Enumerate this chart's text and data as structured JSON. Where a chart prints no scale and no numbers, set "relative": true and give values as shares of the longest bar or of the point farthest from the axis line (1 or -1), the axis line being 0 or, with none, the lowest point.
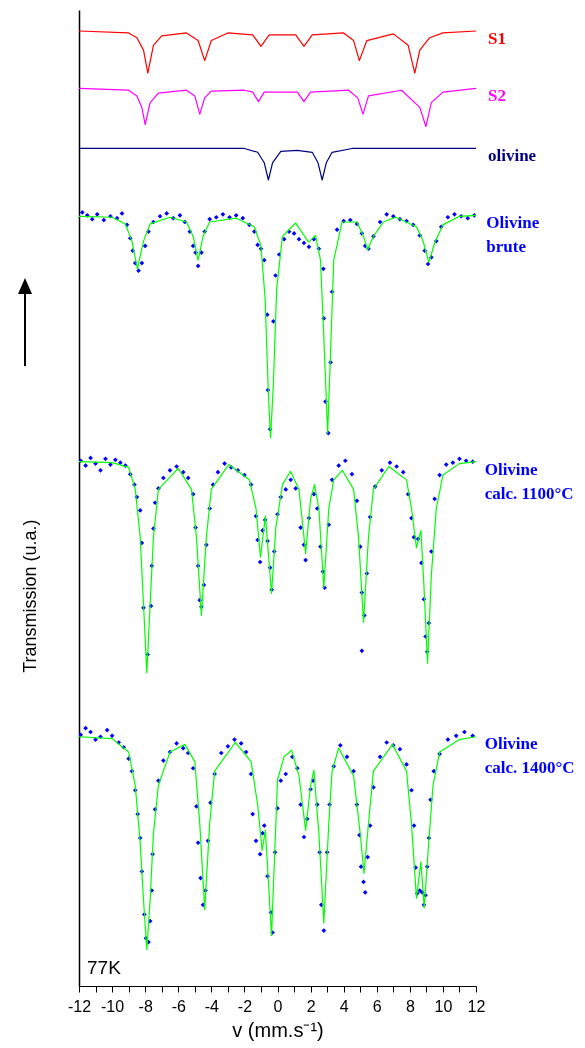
{
  "chart_data": {
    "type": "line",
    "relative": true,
    "xlabel": "v (mm.s⁻¹)",
    "ylabel": "Transmission (u.a.)",
    "xlim": [
      -12,
      12
    ],
    "xticks": [
      -12,
      {
        "value": -11,
        "label": null
      },
      -10,
      {
        "value": -9,
        "label": null
      },
      -8,
      {
        "value": -7,
        "label": null
      },
      -6,
      {
        "value": -5,
        "label": null
      },
      -4,
      {
        "value": -3,
        "label": null
      },
      -2,
      {
        "value": -1,
        "label": null
      },
      0,
      {
        "value": 1,
        "label": null
      },
      2,
      {
        "value": 3,
        "label": null
      },
      4,
      {
        "value": 5,
        "label": null
      },
      6,
      {
        "value": 7,
        "label": null
      },
      8,
      {
        "value": 9,
        "label": null
      },
      10,
      {
        "value": 11,
        "label": null
      },
      12
    ],
    "grid": false,
    "annotations": [
      "77K"
    ],
    "series": [
      {
        "name": "S1",
        "type": "line",
        "color": "#ff0000",
        "x": [
          -12,
          -9,
          -8.5,
          -8.1,
          -7.84,
          -7.5,
          -7,
          -5.5,
          -4.8,
          -4.4,
          -4,
          -3,
          -1.5,
          -1,
          -0.5,
          1.1,
          1.6,
          2.1,
          4,
          4.6,
          4.95,
          5.4,
          7,
          7.9,
          8.3,
          8.6,
          9.2,
          10,
          12
        ],
        "values": [
          1,
          0.998,
          0.993,
          0.98,
          0.956,
          0.985,
          0.995,
          0.998,
          0.99,
          0.969,
          0.99,
          0.998,
          0.996,
          0.984,
          0.996,
          0.996,
          0.984,
          0.996,
          0.998,
          0.99,
          0.969,
          0.99,
          0.997,
          0.985,
          0.956,
          0.98,
          0.993,
          0.998,
          1
        ]
      },
      {
        "name": "S2",
        "type": "line",
        "color": "#ff00ff",
        "x": [
          -12,
          -9,
          -8.5,
          -8.2,
          -8,
          -7.7,
          -7.2,
          -5.5,
          -5,
          -4.7,
          -4.4,
          -4,
          -2,
          -1.5,
          -1.15,
          -0.8,
          1.2,
          1.6,
          2,
          4.3,
          4.85,
          5.17,
          5.5,
          7.5,
          8.6,
          8.97,
          9.3,
          10,
          12
        ],
        "values": [
          0.94,
          0.938,
          0.932,
          0.92,
          0.902,
          0.925,
          0.935,
          0.938,
          0.932,
          0.913,
          0.93,
          0.937,
          0.938,
          0.936,
          0.926,
          0.936,
          0.936,
          0.926,
          0.936,
          0.938,
          0.93,
          0.913,
          0.932,
          0.938,
          0.92,
          0.9,
          0.925,
          0.936,
          0.94
        ]
      },
      {
        "name": "olivine",
        "type": "line",
        "color": "#000080",
        "x": [
          -12,
          -2,
          -1.2,
          -0.8,
          -0.55,
          -0.3,
          0.2,
          1.2,
          2.1,
          2.45,
          2.7,
          2.95,
          3.3,
          4.5,
          12
        ],
        "values": [
          0.877,
          0.877,
          0.873,
          0.862,
          0.844,
          0.862,
          0.874,
          0.875,
          0.873,
          0.862,
          0.844,
          0.862,
          0.873,
          0.877,
          0.877
        ]
      },
      {
        "name": "Olivine brute",
        "type": "scatter",
        "marker": "diamond",
        "color": "#0000ff",
        "x": [
          -11.8,
          -11.5,
          -11.2,
          -10.9,
          -10.5,
          -10.1,
          -9.7,
          -9.4,
          -9.1,
          -8.9,
          -8.75,
          -8.6,
          -8.4,
          -8.2,
          -8,
          -7.8,
          -7.5,
          -7.1,
          -6.7,
          -6.3,
          -5.9,
          -5.6,
          -5.3,
          -5.1,
          -4.95,
          -4.8,
          -4.6,
          -4.4,
          -4.1,
          -3.7,
          -3.3,
          -2.9,
          -2.5,
          -2.1,
          -1.7,
          -1.4,
          -1.2,
          -1,
          -0.8,
          -0.62,
          -0.58,
          -0.45,
          -0.25,
          -0.12,
          0.1,
          0.4,
          0.7,
          1,
          1.3,
          1.6,
          1.9,
          2.2,
          2.5,
          2.77,
          2.8,
          2.9,
          3.07,
          3.21,
          3.3,
          3.6,
          4,
          4.4,
          4.8,
          5.1,
          5.3,
          5.5,
          5.8,
          6.2,
          6.6,
          7,
          7.4,
          7.8,
          8.2,
          8.6,
          8.9,
          9.1,
          9.3,
          9.6,
          9.9,
          10.3,
          10.7,
          11.1,
          11.5,
          11.9
        ],
        "values": [
          0.81,
          0.807,
          0.803,
          0.808,
          0.802,
          0.806,
          0.804,
          0.809,
          0.797,
          0.783,
          0.77,
          0.757,
          0.749,
          0.757,
          0.775,
          0.79,
          0.8,
          0.806,
          0.809,
          0.804,
          0.807,
          0.8,
          0.79,
          0.775,
          0.768,
          0.754,
          0.768,
          0.79,
          0.803,
          0.805,
          0.808,
          0.805,
          0.807,
          0.804,
          0.797,
          0.79,
          0.776,
          0.772,
          0.76,
          0.703,
          0.624,
          0.583,
          0.696,
          0.744,
          0.766,
          0.782,
          0.79,
          0.788,
          0.782,
          0.778,
          0.774,
          0.782,
          0.772,
          0.751,
          0.699,
          0.612,
          0.579,
          0.653,
          0.727,
          0.792,
          0.801,
          0.802,
          0.798,
          0.788,
          0.775,
          0.772,
          0.785,
          0.8,
          0.808,
          0.806,
          0.803,
          0.801,
          0.797,
          0.786,
          0.77,
          0.756,
          0.763,
          0.78,
          0.795,
          0.805,
          0.808,
          0.806,
          0.804,
          0.807
        ]
      },
      {
        "color": "#00ff00",
        "x": [
          -12,
          -10,
          -9.2,
          -8.8,
          -8.47,
          -8.1,
          -7.7,
          -6.5,
          -5.5,
          -5.1,
          -4.8,
          -4.5,
          -4.1,
          -2.5,
          -1.4,
          -1,
          -0.75,
          -0.55,
          -0.42,
          -0.25,
          -0.05,
          0.3,
          1.09,
          1.88,
          2.3,
          2.6,
          2.8,
          3.03,
          3.2,
          3.4,
          3.9,
          4.8,
          5.2,
          5.45,
          5.8,
          6.4,
          7.15,
          8.4,
          8.8,
          9.15,
          9.5,
          10,
          11,
          12
        ],
        "values": [
          0.806,
          0.805,
          0.798,
          0.78,
          0.751,
          0.78,
          0.798,
          0.805,
          0.8,
          0.785,
          0.76,
          0.785,
          0.8,
          0.804,
          0.795,
          0.775,
          0.72,
          0.62,
          0.574,
          0.63,
          0.73,
          0.785,
          0.799,
          0.779,
          0.786,
          0.76,
          0.68,
          0.579,
          0.66,
          0.76,
          0.8,
          0.8,
          0.785,
          0.771,
          0.785,
          0.8,
          0.805,
          0.795,
          0.78,
          0.758,
          0.778,
          0.797,
          0.806,
          0.807
        ]
      },
      {
        "name": "Olivine calc. 1100°C",
        "type": "scatter",
        "marker": "diamond",
        "color": "#0000ff",
        "x": [
          -11.9,
          -11.6,
          -11.3,
          -11,
          -10.7,
          -10.4,
          -10.1,
          -9.8,
          -9.5,
          -9.2,
          -8.9,
          -8.65,
          -8.5,
          -8.3,
          -8.2,
          -8.1,
          -7.85,
          -7.65,
          -7.6,
          -7.5,
          -7.4,
          -7.2,
          -6.9,
          -6.5,
          -6.1,
          -5.7,
          -5.4,
          -5.1,
          -4.95,
          -4.8,
          -4.7,
          -4.6,
          -4.45,
          -4.3,
          -4.1,
          -3.9,
          -3.6,
          -3.2,
          -2.8,
          -2.4,
          -2,
          -1.6,
          -1.3,
          -1.2,
          -1.05,
          -0.9,
          -0.75,
          -0.6,
          -0.45,
          -0.35,
          -0.2,
          0,
          0.2,
          0.5,
          0.8,
          1.1,
          1.4,
          1.6,
          1.7,
          1.9,
          2.2,
          2.4,
          2.6,
          2.75,
          2.85,
          3.1,
          3.3,
          3.7,
          4.1,
          4.5,
          4.8,
          5,
          5.1,
          5.25,
          5.1,
          5.4,
          5.6,
          5.9,
          6.3,
          6.8,
          7.2,
          7.6,
          7.9,
          8.1,
          8.25,
          8.5,
          8.7,
          8.85,
          8.95,
          9.05,
          9.15,
          9.3,
          9.5,
          9.8,
          10.2,
          10.6,
          11,
          11.4,
          11.8
        ],
        "values": [
          0.55,
          0.545,
          0.553,
          0.547,
          0.54,
          0.552,
          0.546,
          0.551,
          0.548,
          0.545,
          0.536,
          0.525,
          0.512,
          0.498,
          0.464,
          0.396,
          0.347,
          0.398,
          0.44,
          0.479,
          0.506,
          0.521,
          0.532,
          0.54,
          0.544,
          0.538,
          0.532,
          0.515,
          0.48,
          0.44,
          0.404,
          0.397,
          0.42,
          0.462,
          0.5,
          0.525,
          0.538,
          0.547,
          0.543,
          0.54,
          0.535,
          0.525,
          0.492,
          0.467,
          0.444,
          0.477,
          0.488,
          0.466,
          0.438,
          0.415,
          0.455,
          0.494,
          0.512,
          0.52,
          0.53,
          0.521,
          0.48,
          0.462,
          0.446,
          0.49,
          0.515,
          0.5,
          0.46,
          0.434,
          0.417,
          0.483,
          0.53,
          0.545,
          0.55,
          0.536,
          0.508,
          0.46,
          0.412,
          0.388,
          0.351,
          0.432,
          0.491,
          0.523,
          0.54,
          0.548,
          0.544,
          0.538,
          0.515,
          0.49,
          0.47,
          0.468,
          0.443,
          0.405,
          0.366,
          0.35,
          0.38,
          0.455,
          0.51,
          0.535,
          0.546,
          0.548,
          0.552,
          0.55,
          0.549
        ]
      },
      {
        "color": "#00ff00",
        "x": [
          -12,
          -10,
          -9,
          -8.6,
          -8.3,
          -8.1,
          -7.9,
          -7.7,
          -7.5,
          -7.2,
          -6,
          -5.2,
          -4.9,
          -4.6,
          -4.3,
          -4,
          -2.95,
          -1.7,
          -1.3,
          -1.03,
          -0.73,
          -0.36,
          -0.1,
          0.3,
          0.79,
          1.3,
          1.7,
          2,
          2.24,
          2.5,
          2.8,
          3.1,
          3.4,
          3.92,
          4.6,
          4.9,
          5.2,
          5.5,
          5.8,
          6.73,
          7.8,
          8.1,
          8.4,
          8.67,
          8.85,
          9.07,
          9.3,
          9.6,
          10,
          11,
          12
        ],
        "values": [
          0.549,
          0.548,
          0.543,
          0.52,
          0.47,
          0.4,
          0.328,
          0.4,
          0.47,
          0.52,
          0.542,
          0.52,
          0.47,
          0.388,
          0.47,
          0.52,
          0.546,
          0.53,
          0.5,
          0.449,
          0.492,
          0.411,
          0.48,
          0.525,
          0.539,
          0.52,
          0.453,
          0.51,
          0.525,
          0.5,
          0.417,
          0.5,
          0.53,
          0.54,
          0.52,
          0.47,
          0.381,
          0.47,
          0.52,
          0.544,
          0.53,
          0.5,
          0.459,
          0.477,
          0.42,
          0.338,
          0.43,
          0.5,
          0.535,
          0.547,
          0.549
        ]
      },
      {
        "name": "Olivine calc. 1400°C",
        "type": "scatter",
        "marker": "diamond",
        "color": "#0000ff",
        "x": [
          -11.9,
          -11.6,
          -11.3,
          -11,
          -10.7,
          -10.3,
          -10,
          -9.6,
          -9.3,
          -9,
          -8.8,
          -8.6,
          -8.45,
          -8.3,
          -8.2,
          -8.05,
          -7.95,
          -7.8,
          -7.7,
          -7.6,
          -7.55,
          -7.4,
          -7.2,
          -6.9,
          -6.5,
          -6.1,
          -5.7,
          -5.4,
          -5.1,
          -4.9,
          -4.8,
          -4.65,
          -4.5,
          -4.35,
          -4.2,
          -4.05,
          -3.8,
          -3.4,
          -3,
          -2.6,
          -2.2,
          -1.9,
          -1.6,
          -1.5,
          -1.3,
          -1.05,
          -0.9,
          -0.8,
          -0.6,
          -0.4,
          -0.3,
          -0.15,
          0,
          0.2,
          0.5,
          0.9,
          1.2,
          1.4,
          1.6,
          1.8,
          2,
          2.15,
          2.4,
          2.55,
          2.65,
          2.8,
          3,
          3.15,
          3.4,
          3.8,
          4.2,
          4.6,
          4.8,
          4.95,
          5.05,
          5.2,
          5.3,
          5.45,
          5.6,
          5.8,
          6.2,
          6.6,
          7,
          7.4,
          7.8,
          8.1,
          8.25,
          8.35,
          8.45,
          8.6,
          8.75,
          8.85,
          8.95,
          9.05,
          9.15,
          9.25,
          9.45,
          9.8,
          10.3,
          10.8,
          11.3,
          11.8
        ],
        "values": [
          0.263,
          0.27,
          0.266,
          0.258,
          0.261,
          0.268,
          0.262,
          0.255,
          0.25,
          0.238,
          0.225,
          0.205,
          0.18,
          0.155,
          0.12,
          0.075,
          0.05,
          0.046,
          0.068,
          0.1,
          0.138,
          0.185,
          0.215,
          0.236,
          0.245,
          0.254,
          0.249,
          0.244,
          0.228,
          0.188,
          0.15,
          0.113,
          0.085,
          0.1,
          0.152,
          0.192,
          0.222,
          0.244,
          0.251,
          0.258,
          0.254,
          0.245,
          0.222,
          0.18,
          0.152,
          0.138,
          0.16,
          0.168,
          0.115,
          0.077,
          0.056,
          0.14,
          0.186,
          0.215,
          0.222,
          0.24,
          0.228,
          0.19,
          0.156,
          0.175,
          0.206,
          0.215,
          0.19,
          0.14,
          0.085,
          0.058,
          0.14,
          0.19,
          0.23,
          0.252,
          0.24,
          0.225,
          0.19,
          0.158,
          0.125,
          0.109,
          0.098,
          0.135,
          0.168,
          0.208,
          0.24,
          0.255,
          0.252,
          0.248,
          0.232,
          0.205,
          0.168,
          0.124,
          0.097,
          0.1,
          0.098,
          0.085,
          0.095,
          0.125,
          0.155,
          0.195,
          0.225,
          0.243,
          0.258,
          0.262,
          0.266,
          0.262
        ]
      },
      {
        "color": "#00ff00",
        "x": [
          -12,
          -10,
          -9,
          -8.6,
          -8.3,
          -8.1,
          -7.9,
          -7.7,
          -7.5,
          -7.2,
          -6.5,
          -5.6,
          -5,
          -4.7,
          -4.4,
          -4.1,
          -3.8,
          -2.55,
          -1.6,
          -1.2,
          -0.93,
          -0.73,
          -0.36,
          -0.1,
          0,
          0.4,
          0.85,
          1.3,
          1.7,
          2,
          2.2,
          2.5,
          2.8,
          3.1,
          3.3,
          3.7,
          4.6,
          5,
          5.23,
          5.5,
          5.8,
          6.95,
          7.8,
          8.1,
          8.4,
          8.67,
          8.87,
          9.1,
          9.4,
          9.8,
          11,
          12
        ],
        "values": [
          0.261,
          0.259,
          0.245,
          0.21,
          0.15,
          0.09,
          0.038,
          0.09,
          0.16,
          0.21,
          0.245,
          0.253,
          0.235,
          0.17,
          0.08,
          0.17,
          0.225,
          0.255,
          0.235,
          0.19,
          0.142,
          0.163,
          0.053,
          0.17,
          0.216,
          0.24,
          0.247,
          0.22,
          0.163,
          0.21,
          0.226,
          0.16,
          0.066,
          0.17,
          0.225,
          0.249,
          0.22,
          0.16,
          0.118,
          0.17,
          0.225,
          0.253,
          0.225,
          0.17,
          0.092,
          0.13,
          0.082,
          0.14,
          0.21,
          0.245,
          0.258,
          0.261
        ]
      }
    ]
  }
}
